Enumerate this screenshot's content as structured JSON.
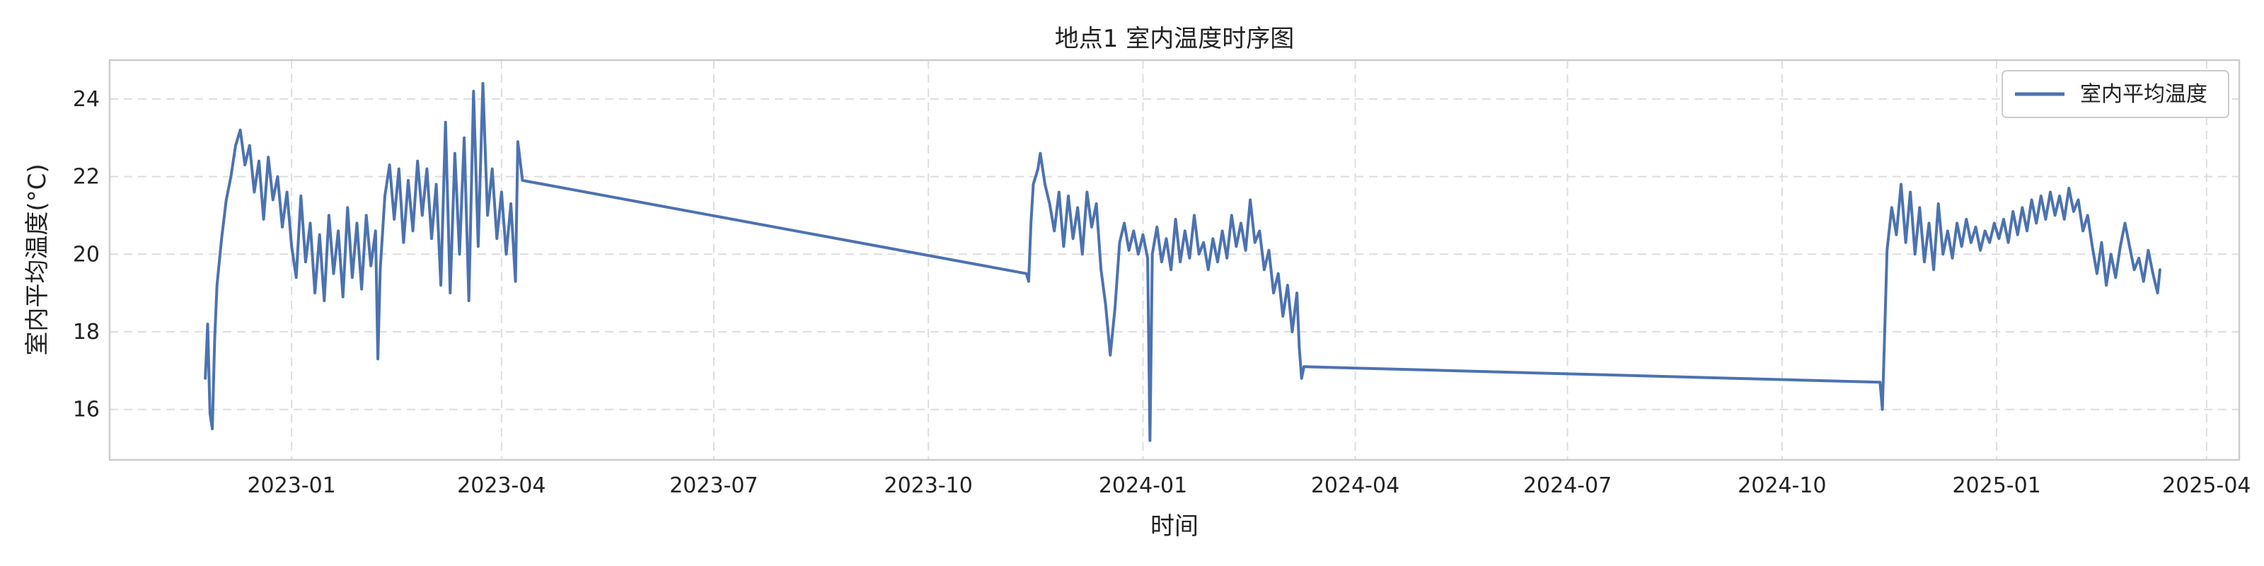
{
  "chart_data": {
    "type": "line",
    "title": "地点1 室内温度时序图",
    "xlabel": "时间",
    "ylabel": "室内平均温度(°C)",
    "xlim": [
      "2022-10-15",
      "2025-04-15"
    ],
    "ylim": [
      14.7,
      25.0
    ],
    "yticks": [
      16,
      18,
      20,
      22,
      24
    ],
    "xticks": [
      "2023-01",
      "2023-04",
      "2023-07",
      "2023-10",
      "2024-01",
      "2024-04",
      "2024-07",
      "2024-10",
      "2025-01",
      "2025-04"
    ],
    "grid": true,
    "legend_position": "top-right",
    "series": [
      {
        "name": "室内平均温度",
        "color": "#4c72b0",
        "points": [
          [
            "2022-11-25",
            16.8
          ],
          [
            "2022-11-26",
            18.2
          ],
          [
            "2022-11-27",
            15.9
          ],
          [
            "2022-11-28",
            15.5
          ],
          [
            "2022-11-29",
            17.8
          ],
          [
            "2022-11-30",
            19.2
          ],
          [
            "2022-12-02",
            20.4
          ],
          [
            "2022-12-04",
            21.4
          ],
          [
            "2022-12-06",
            22.0
          ],
          [
            "2022-12-08",
            22.8
          ],
          [
            "2022-12-10",
            23.2
          ],
          [
            "2022-12-12",
            22.3
          ],
          [
            "2022-12-14",
            22.8
          ],
          [
            "2022-12-16",
            21.6
          ],
          [
            "2022-12-18",
            22.4
          ],
          [
            "2022-12-20",
            20.9
          ],
          [
            "2022-12-22",
            22.5
          ],
          [
            "2022-12-24",
            21.4
          ],
          [
            "2022-12-26",
            22.0
          ],
          [
            "2022-12-28",
            20.7
          ],
          [
            "2022-12-30",
            21.6
          ],
          [
            "2023-01-01",
            20.2
          ],
          [
            "2023-01-03",
            19.4
          ],
          [
            "2023-01-05",
            21.5
          ],
          [
            "2023-01-07",
            19.8
          ],
          [
            "2023-01-09",
            20.8
          ],
          [
            "2023-01-11",
            19.0
          ],
          [
            "2023-01-13",
            20.5
          ],
          [
            "2023-01-15",
            18.8
          ],
          [
            "2023-01-17",
            21.0
          ],
          [
            "2023-01-19",
            19.5
          ],
          [
            "2023-01-21",
            20.6
          ],
          [
            "2023-01-23",
            18.9
          ],
          [
            "2023-01-25",
            21.2
          ],
          [
            "2023-01-27",
            19.4
          ],
          [
            "2023-01-29",
            20.8
          ],
          [
            "2023-01-31",
            19.1
          ],
          [
            "2023-02-02",
            21.0
          ],
          [
            "2023-02-04",
            19.7
          ],
          [
            "2023-02-06",
            20.6
          ],
          [
            "2023-02-07",
            17.3
          ],
          [
            "2023-02-08",
            19.6
          ],
          [
            "2023-02-10",
            21.5
          ],
          [
            "2023-02-12",
            22.3
          ],
          [
            "2023-02-14",
            20.9
          ],
          [
            "2023-02-16",
            22.2
          ],
          [
            "2023-02-18",
            20.3
          ],
          [
            "2023-02-20",
            21.9
          ],
          [
            "2023-02-22",
            20.6
          ],
          [
            "2023-02-24",
            22.4
          ],
          [
            "2023-02-26",
            21.0
          ],
          [
            "2023-02-28",
            22.2
          ],
          [
            "2023-03-02",
            20.4
          ],
          [
            "2023-03-04",
            21.8
          ],
          [
            "2023-03-06",
            19.2
          ],
          [
            "2023-03-08",
            23.4
          ],
          [
            "2023-03-10",
            19.0
          ],
          [
            "2023-03-12",
            22.6
          ],
          [
            "2023-03-14",
            20.0
          ],
          [
            "2023-03-16",
            23.0
          ],
          [
            "2023-03-18",
            18.8
          ],
          [
            "2023-03-20",
            24.2
          ],
          [
            "2023-03-22",
            20.2
          ],
          [
            "2023-03-24",
            24.4
          ],
          [
            "2023-03-26",
            21.0
          ],
          [
            "2023-03-28",
            22.2
          ],
          [
            "2023-03-30",
            20.4
          ],
          [
            "2023-04-01",
            21.6
          ],
          [
            "2023-04-03",
            20.0
          ],
          [
            "2023-04-05",
            21.3
          ],
          [
            "2023-04-07",
            19.3
          ],
          [
            "2023-04-08",
            22.9
          ],
          [
            "2023-04-10",
            21.9
          ],
          [
            "2023-11-12",
            19.5
          ],
          [
            "2023-11-13",
            19.3
          ],
          [
            "2023-11-14",
            20.8
          ],
          [
            "2023-11-15",
            21.8
          ],
          [
            "2023-11-17",
            22.2
          ],
          [
            "2023-11-18",
            22.6
          ],
          [
            "2023-11-20",
            21.8
          ],
          [
            "2023-11-22",
            21.3
          ],
          [
            "2023-11-24",
            20.6
          ],
          [
            "2023-11-26",
            21.6
          ],
          [
            "2023-11-28",
            20.2
          ],
          [
            "2023-11-30",
            21.5
          ],
          [
            "2023-12-02",
            20.4
          ],
          [
            "2023-12-04",
            21.2
          ],
          [
            "2023-12-06",
            20.0
          ],
          [
            "2023-12-08",
            21.6
          ],
          [
            "2023-12-10",
            20.7
          ],
          [
            "2023-12-12",
            21.3
          ],
          [
            "2023-12-14",
            19.6
          ],
          [
            "2023-12-16",
            18.7
          ],
          [
            "2023-12-18",
            17.4
          ],
          [
            "2023-12-20",
            18.6
          ],
          [
            "2023-12-22",
            20.3
          ],
          [
            "2023-12-24",
            20.8
          ],
          [
            "2023-12-26",
            20.1
          ],
          [
            "2023-12-28",
            20.6
          ],
          [
            "2023-12-30",
            20.0
          ],
          [
            "2024-01-01",
            20.5
          ],
          [
            "2024-01-03",
            19.9
          ],
          [
            "2024-01-04",
            15.2
          ],
          [
            "2024-01-05",
            20.0
          ],
          [
            "2024-01-07",
            20.7
          ],
          [
            "2024-01-09",
            19.8
          ],
          [
            "2024-01-11",
            20.4
          ],
          [
            "2024-01-13",
            19.6
          ],
          [
            "2024-01-15",
            20.9
          ],
          [
            "2024-01-17",
            19.8
          ],
          [
            "2024-01-19",
            20.6
          ],
          [
            "2024-01-21",
            19.9
          ],
          [
            "2024-01-23",
            21.0
          ],
          [
            "2024-01-25",
            20.0
          ],
          [
            "2024-01-27",
            20.3
          ],
          [
            "2024-01-29",
            19.6
          ],
          [
            "2024-01-31",
            20.4
          ],
          [
            "2024-02-02",
            19.8
          ],
          [
            "2024-02-04",
            20.6
          ],
          [
            "2024-02-06",
            19.9
          ],
          [
            "2024-02-08",
            21.0
          ],
          [
            "2024-02-10",
            20.2
          ],
          [
            "2024-02-12",
            20.8
          ],
          [
            "2024-02-14",
            20.1
          ],
          [
            "2024-02-16",
            21.4
          ],
          [
            "2024-02-18",
            20.3
          ],
          [
            "2024-02-20",
            20.6
          ],
          [
            "2024-02-22",
            19.6
          ],
          [
            "2024-02-24",
            20.1
          ],
          [
            "2024-02-26",
            19.0
          ],
          [
            "2024-02-28",
            19.5
          ],
          [
            "2024-03-01",
            18.4
          ],
          [
            "2024-03-03",
            19.2
          ],
          [
            "2024-03-05",
            18.0
          ],
          [
            "2024-03-07",
            19.0
          ],
          [
            "2024-03-08",
            17.6
          ],
          [
            "2024-03-09",
            16.8
          ],
          [
            "2024-03-10",
            17.1
          ],
          [
            "2024-11-12",
            16.7
          ],
          [
            "2024-11-13",
            16.0
          ],
          [
            "2024-11-14",
            18.0
          ],
          [
            "2024-11-15",
            20.1
          ],
          [
            "2024-11-17",
            21.2
          ],
          [
            "2024-11-19",
            20.5
          ],
          [
            "2024-11-21",
            21.8
          ],
          [
            "2024-11-23",
            20.3
          ],
          [
            "2024-11-25",
            21.6
          ],
          [
            "2024-11-27",
            20.0
          ],
          [
            "2024-11-29",
            21.2
          ],
          [
            "2024-12-01",
            19.8
          ],
          [
            "2024-12-03",
            20.8
          ],
          [
            "2024-12-05",
            19.6
          ],
          [
            "2024-12-07",
            21.3
          ],
          [
            "2024-12-09",
            20.0
          ],
          [
            "2024-12-11",
            20.6
          ],
          [
            "2024-12-13",
            19.9
          ],
          [
            "2024-12-15",
            20.8
          ],
          [
            "2024-12-17",
            20.2
          ],
          [
            "2024-12-19",
            20.9
          ],
          [
            "2024-12-21",
            20.3
          ],
          [
            "2024-12-23",
            20.7
          ],
          [
            "2024-12-25",
            20.1
          ],
          [
            "2024-12-27",
            20.6
          ],
          [
            "2024-12-29",
            20.3
          ],
          [
            "2024-12-31",
            20.8
          ],
          [
            "2025-01-02",
            20.4
          ],
          [
            "2025-01-04",
            20.9
          ],
          [
            "2025-01-06",
            20.3
          ],
          [
            "2025-01-08",
            21.1
          ],
          [
            "2025-01-10",
            20.5
          ],
          [
            "2025-01-12",
            21.2
          ],
          [
            "2025-01-14",
            20.6
          ],
          [
            "2025-01-16",
            21.4
          ],
          [
            "2025-01-18",
            20.8
          ],
          [
            "2025-01-20",
            21.5
          ],
          [
            "2025-01-22",
            20.9
          ],
          [
            "2025-01-24",
            21.6
          ],
          [
            "2025-01-26",
            21.0
          ],
          [
            "2025-01-28",
            21.5
          ],
          [
            "2025-01-30",
            20.9
          ],
          [
            "2025-02-01",
            21.7
          ],
          [
            "2025-02-03",
            21.1
          ],
          [
            "2025-02-05",
            21.4
          ],
          [
            "2025-02-07",
            20.6
          ],
          [
            "2025-02-09",
            21.0
          ],
          [
            "2025-02-11",
            20.2
          ],
          [
            "2025-02-13",
            19.5
          ],
          [
            "2025-02-15",
            20.3
          ],
          [
            "2025-02-17",
            19.2
          ],
          [
            "2025-02-19",
            20.0
          ],
          [
            "2025-02-21",
            19.4
          ],
          [
            "2025-02-23",
            20.2
          ],
          [
            "2025-02-25",
            20.8
          ],
          [
            "2025-02-27",
            20.2
          ],
          [
            "2025-03-01",
            19.6
          ],
          [
            "2025-03-03",
            19.9
          ],
          [
            "2025-03-05",
            19.3
          ],
          [
            "2025-03-07",
            20.1
          ],
          [
            "2025-03-09",
            19.5
          ],
          [
            "2025-03-11",
            19.0
          ],
          [
            "2025-03-12",
            19.6
          ]
        ]
      }
    ]
  }
}
